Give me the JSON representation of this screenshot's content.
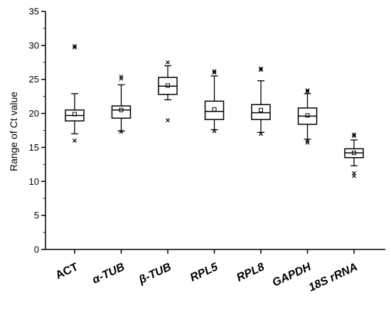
{
  "chart_data": {
    "type": "box",
    "title": "",
    "xlabel": "",
    "ylabel": "Range of Ct value",
    "ylim": [
      0,
      35
    ],
    "yticks": [
      0,
      5,
      10,
      15,
      20,
      25,
      30,
      35
    ],
    "ytick_labels": [
      "0",
      "5",
      "10",
      "15",
      "20",
      "25",
      "30",
      "35"
    ],
    "grid": false,
    "legend": "none",
    "categories": [
      "ACT",
      "α-TUB",
      "β-TUB",
      "RPL5",
      "RPL8",
      "GAPDH",
      "18S rRNA"
    ],
    "boxes": [
      {
        "name": "ACT",
        "whisker_low": 17.0,
        "q1": 18.9,
        "median": 19.7,
        "q3": 20.5,
        "whisker_high": 22.9,
        "mean": 19.9,
        "outliers": [
          16.0,
          29.7,
          29.9
        ]
      },
      {
        "name": "α-TUB",
        "whisker_low": 17.4,
        "q1": 19.3,
        "median": 20.5,
        "q3": 21.1,
        "whisker_high": 24.2,
        "mean": 20.5,
        "outliers": [
          17.3,
          25.1,
          25.4
        ]
      },
      {
        "name": "β-TUB",
        "whisker_low": 22.0,
        "q1": 22.8,
        "median": 24.0,
        "q3": 25.3,
        "whisker_high": 27.0,
        "mean": 24.1,
        "outliers": [
          19.0,
          27.5
        ]
      },
      {
        "name": "RPL5",
        "whisker_low": 17.6,
        "q1": 19.1,
        "median": 20.3,
        "q3": 21.8,
        "whisker_high": 25.5,
        "mean": 20.6,
        "outliers": [
          17.4,
          26.0,
          26.2
        ]
      },
      {
        "name": "RPL8",
        "whisker_low": 17.2,
        "q1": 19.1,
        "median": 20.1,
        "q3": 21.3,
        "whisker_high": 24.8,
        "mean": 20.5,
        "outliers": [
          17.0,
          26.4,
          26.6
        ]
      },
      {
        "name": "GAPDH",
        "whisker_low": 16.2,
        "q1": 18.4,
        "median": 19.6,
        "q3": 20.8,
        "whisker_high": 22.9,
        "mean": 19.7,
        "outliers": [
          15.7,
          16.0,
          23.2,
          23.4
        ]
      },
      {
        "name": "18S rRNA",
        "whisker_low": 12.3,
        "q1": 13.5,
        "median": 14.2,
        "q3": 14.8,
        "whisker_high": 16.1,
        "mean": 14.2,
        "outliers": [
          10.8,
          11.2,
          16.7,
          16.9
        ]
      }
    ],
    "colors": {
      "box": "#000000",
      "background": "#ffffff"
    }
  }
}
